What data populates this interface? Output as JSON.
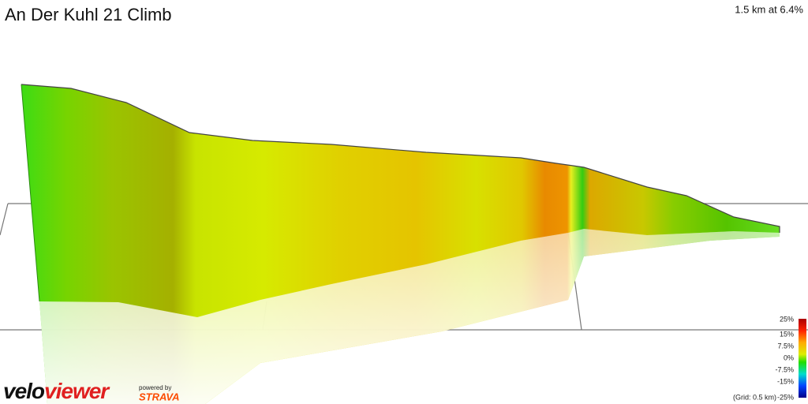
{
  "header": {
    "title": "An Der Kuhl 21 Climb",
    "summary": "1.5 km at 6.4%"
  },
  "legend": {
    "labels": [
      "25%",
      "15%",
      "7.5%",
      "0%",
      "-7.5%",
      "-15%",
      "-25%"
    ],
    "grid_note": "(Grid: 0.5 km)"
  },
  "branding": {
    "velo": "velo",
    "viewer": "viewer",
    "powered_by": "powered by",
    "strava": "STRAVA"
  }
}
